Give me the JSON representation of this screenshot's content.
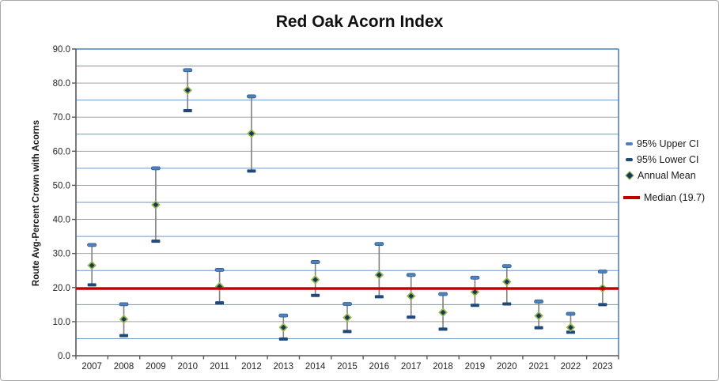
{
  "title": "Red Oak Acorn Index",
  "legend": {
    "upper_label": "95% Upper CI",
    "lower_label": "95% Lower CI",
    "mean_label": "Annual Mean",
    "median_label": "Median (19.7)"
  },
  "chart_data": {
    "type": "scatter",
    "title": "Red Oak Acorn Index",
    "xlabel": "",
    "ylabel": "Route Avg-Percent Crown with Acorns",
    "ylim": [
      0,
      90
    ],
    "ytick_step": 10,
    "minor_grid_step": 5,
    "ytick_labels": [
      "0.0",
      "10.0",
      "20.0",
      "30.0",
      "40.0",
      "50.0",
      "60.0",
      "70.0",
      "80.0",
      "90.0"
    ],
    "grid": true,
    "legend_position": "right",
    "categories": [
      "2007",
      "2008",
      "2009",
      "2010",
      "2011",
      "2012",
      "2013",
      "2014",
      "2015",
      "2016",
      "2017",
      "2018",
      "2019",
      "2020",
      "2021",
      "2022",
      "2023"
    ],
    "series": [
      {
        "name": "95% Upper CI",
        "type": "cap-upper",
        "values": [
          32.5,
          15.1,
          55.0,
          83.8,
          25.2,
          76.1,
          11.8,
          27.5,
          15.2,
          32.8,
          23.7,
          18.1,
          22.9,
          26.3,
          15.9,
          12.3,
          24.7
        ]
      },
      {
        "name": "95% Lower CI",
        "type": "cap-lower",
        "values": [
          20.8,
          5.9,
          33.6,
          71.9,
          15.5,
          54.2,
          4.9,
          17.7,
          7.1,
          17.3,
          11.3,
          7.8,
          14.8,
          15.2,
          8.2,
          6.9,
          15.0
        ]
      },
      {
        "name": "Annual Mean",
        "type": "diamond-marker",
        "values": [
          26.5,
          10.7,
          44.3,
          77.9,
          20.3,
          65.2,
          8.3,
          22.3,
          11.2,
          23.7,
          17.5,
          12.7,
          18.7,
          21.7,
          11.7,
          8.3,
          19.8
        ]
      },
      {
        "name": "Median (19.7)",
        "type": "hline",
        "value": 19.7
      }
    ],
    "median": 19.7
  },
  "colors": {
    "upper_ci": "#4F81BD",
    "upper_ci_border": "#2E5A8F",
    "lower_ci": "#1F497D",
    "mean_fill": "#17375E",
    "mean_outline": "#97B849",
    "median": "#C00000",
    "whisker": "#808080",
    "grid_major": "#A3A3A3",
    "grid_minor": "#6D97CE",
    "plot_border": "#4F81BD",
    "axis": "#595959",
    "text": "#262626"
  }
}
